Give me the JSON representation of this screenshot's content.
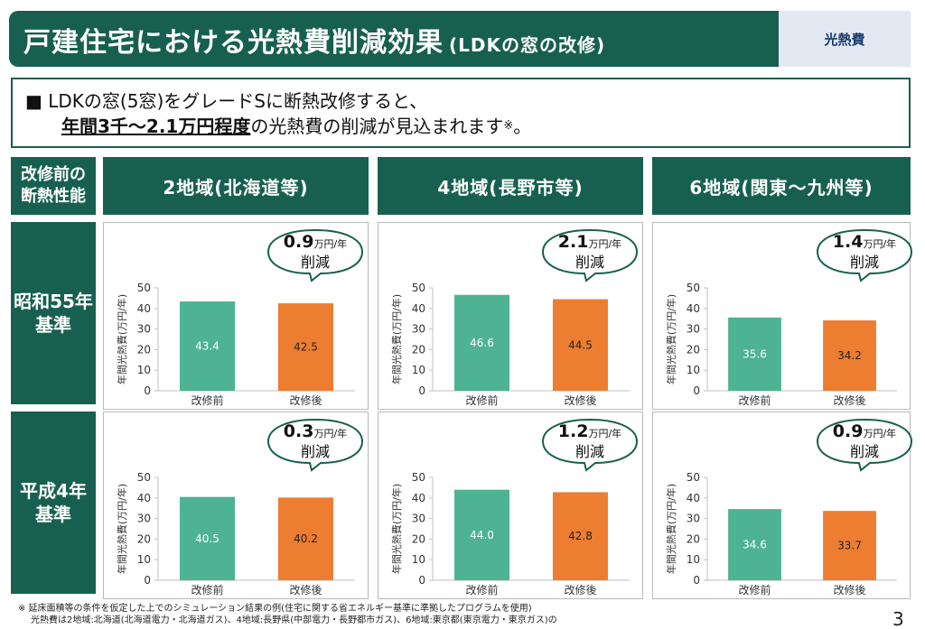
{
  "header": {
    "title": "戸建住宅における光熱費削減効果",
    "subtitle": "(LDKの窓の改修)",
    "badge": "光熱費"
  },
  "summary": {
    "bullet": "■",
    "line1": "LDKの窓(5窓)をグレードSに断熱改修すると、",
    "line2_emphasis": "年間3千〜2.1万円程度",
    "line2_rest": "の光熱費の削減が見込まれます",
    "line2_mark": "※",
    "line2_end": "。"
  },
  "table": {
    "corner_label_1": "改修前の",
    "corner_label_2": "断熱性能",
    "columns": [
      "2地域(北海道等)",
      "4地域(長野市等)",
      "6地域(関東〜九州等)"
    ],
    "rows": [
      {
        "label_1": "昭和55年",
        "label_2": "基準"
      },
      {
        "label_1": "平成4年",
        "label_2": "基準"
      }
    ]
  },
  "colors": {
    "header_green": "#17604f",
    "bar_before": "#4db392",
    "bar_after": "#ed7d31",
    "badge_bg": "#e3e8f2"
  },
  "chart_data": [
    {
      "type": "bar",
      "region": "2地域(北海道等)",
      "baseline": "昭和55年基準",
      "categories": [
        "改修前",
        "改修後"
      ],
      "values": [
        43.4,
        42.5
      ],
      "ylabel": "年間光熱費(万円/年)",
      "ylim": [
        0,
        50
      ],
      "yticks": [
        0,
        10,
        20,
        30,
        40,
        50
      ],
      "reduction": "0.9",
      "reduction_unit": "万円/年",
      "reduction_label": "削減"
    },
    {
      "type": "bar",
      "region": "4地域(長野市等)",
      "baseline": "昭和55年基準",
      "categories": [
        "改修前",
        "改修後"
      ],
      "values": [
        46.6,
        44.5
      ],
      "ylabel": "年間光熱費(万円/年)",
      "ylim": [
        0,
        50
      ],
      "yticks": [
        0,
        10,
        20,
        30,
        40,
        50
      ],
      "reduction": "2.1",
      "reduction_unit": "万円/年",
      "reduction_label": "削減"
    },
    {
      "type": "bar",
      "region": "6地域(関東〜九州等)",
      "baseline": "昭和55年基準",
      "categories": [
        "改修前",
        "改修後"
      ],
      "values": [
        35.6,
        34.2
      ],
      "ylabel": "年間光熱費(万円/年)",
      "ylim": [
        0,
        50
      ],
      "yticks": [
        0,
        10,
        20,
        30,
        40,
        50
      ],
      "reduction": "1.4",
      "reduction_unit": "万円/年",
      "reduction_label": "削減"
    },
    {
      "type": "bar",
      "region": "2地域(北海道等)",
      "baseline": "平成4年基準",
      "categories": [
        "改修前",
        "改修後"
      ],
      "values": [
        40.5,
        40.2
      ],
      "ylabel": "年間光熱費(万円/年)",
      "ylim": [
        0,
        50
      ],
      "yticks": [
        0,
        10,
        20,
        30,
        40,
        50
      ],
      "reduction": "0.3",
      "reduction_unit": "万円/年",
      "reduction_label": "削減"
    },
    {
      "type": "bar",
      "region": "4地域(長野市等)",
      "baseline": "平成4年基準",
      "categories": [
        "改修前",
        "改修後"
      ],
      "values": [
        44.0,
        42.8
      ],
      "ylabel": "年間光熱費(万円/年)",
      "ylim": [
        0,
        50
      ],
      "yticks": [
        0,
        10,
        20,
        30,
        40,
        50
      ],
      "reduction": "1.2",
      "reduction_unit": "万円/年",
      "reduction_label": "削減"
    },
    {
      "type": "bar",
      "region": "6地域(関東〜九州等)",
      "baseline": "平成4年基準",
      "categories": [
        "改修前",
        "改修後"
      ],
      "values": [
        34.6,
        33.7
      ],
      "ylabel": "年間光熱費(万円/年)",
      "ylim": [
        0,
        50
      ],
      "yticks": [
        0,
        10,
        20,
        30,
        40,
        50
      ],
      "reduction": "0.9",
      "reduction_unit": "万円/年",
      "reduction_label": "削減"
    }
  ],
  "footnote": {
    "line1": "※ 延床面積等の条件を仮定した上でのシミュレーション結果の例(住宅に関する省エネルギー基準に準拠したプログラムを使用)",
    "line2": "光熱費は2地域:北海道(北海道電力・北海道ガス)、4地域:長野県(中部電力・長野都市ガス)、6地域:東京都(東京電力・東京ガス)の"
  },
  "page_number": "3"
}
